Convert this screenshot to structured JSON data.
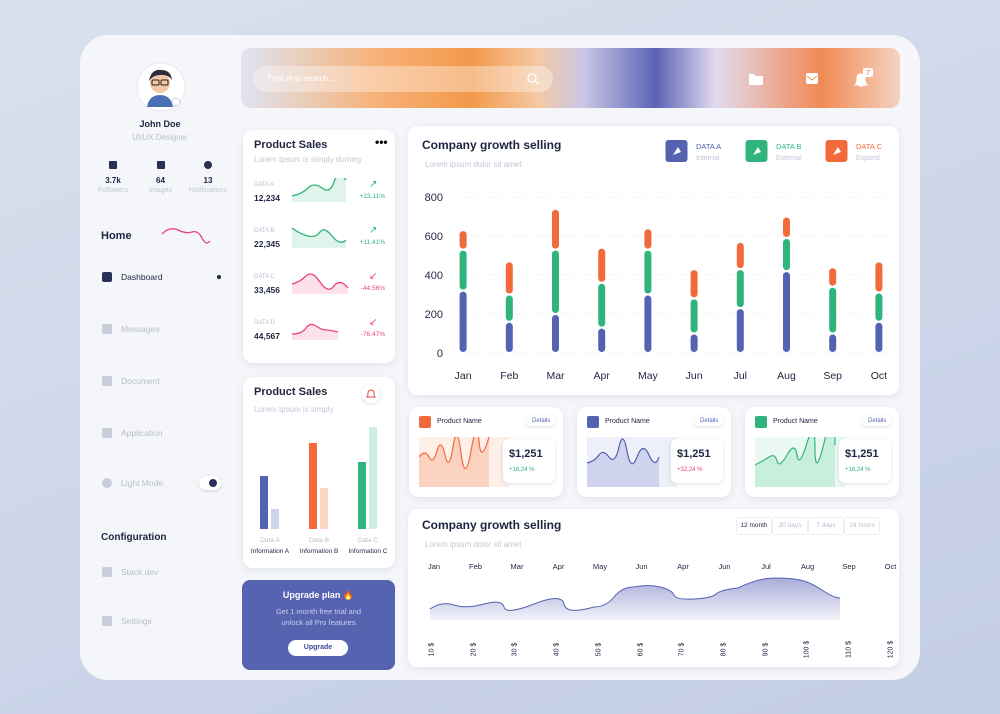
{
  "sidebar": {
    "name": "John Doe",
    "role": "UI/UX Designer",
    "stats": [
      {
        "value": "3.7k",
        "label": "Followers"
      },
      {
        "value": "64",
        "label": "Images"
      },
      {
        "value": "13",
        "label": "Notifications"
      }
    ],
    "home": "Home",
    "menu": [
      "Dashboard",
      "Messages",
      "Document",
      "Application",
      "Light Mode"
    ],
    "config": "Configuration",
    "config_menu": [
      "Stack dev",
      "Settings"
    ]
  },
  "header": {
    "search": "Type in to search...",
    "badge": "7"
  },
  "product_sales": {
    "title": "Product Sales",
    "subtitle": "Lorem Ipsum is simply dummy",
    "items": [
      {
        "label": "DATA A",
        "value": "12,234",
        "change": "+23.11%"
      },
      {
        "label": "DATA B",
        "value": "22,345",
        "change": "+11.41%"
      },
      {
        "label": "DATA C",
        "value": "33,456",
        "change": "-44.56%"
      },
      {
        "label": "DATA D",
        "value": "44,567",
        "change": "-76.47%"
      }
    ]
  },
  "product_sales_2": {
    "title": "Product Sales",
    "subtitle": "Lorem Ipsum is simply",
    "bars": [
      {
        "label": "Data A",
        "name": "Information A"
      },
      {
        "label": "Data B",
        "name": "Information B"
      },
      {
        "label": "Data C",
        "name": "Information C"
      }
    ]
  },
  "upgrade": {
    "title": "Upgrade plan 🔥",
    "lines": [
      "Get 1 month free trial and",
      "unlock all Pro features"
    ],
    "button": "Upgrade"
  },
  "chart_data": {
    "type": "bar",
    "stacked": true,
    "title": "Company growth selling",
    "subtitle": "Lorem ipsum dolor sit amet",
    "categories": [
      "Jan",
      "Feb",
      "Mar",
      "Apr",
      "May",
      "Jun",
      "Jul",
      "Aug",
      "Sep",
      "Oct"
    ],
    "series": [
      {
        "name": "DATA A",
        "note": "Internal",
        "color": "#5462b2",
        "values": [
          320,
          160,
          200,
          130,
          300,
          100,
          230,
          420,
          100,
          160
        ]
      },
      {
        "name": "DATA B",
        "note": "External",
        "color": "#2fb47e",
        "values": [
          210,
          140,
          330,
          230,
          230,
          180,
          200,
          170,
          240,
          150
        ]
      },
      {
        "name": "DATA C",
        "note": "Expand",
        "color": "#f26a3a",
        "values": [
          100,
          170,
          210,
          180,
          110,
          150,
          140,
          110,
          100,
          160
        ]
      }
    ],
    "ylim": [
      0,
      800
    ],
    "yticks": [
      0,
      200,
      400,
      600,
      800
    ],
    "grid": true
  },
  "product_cards": [
    {
      "name": "Product Name",
      "link": "Details",
      "price": "$1,251",
      "change": "+16,24 %"
    },
    {
      "name": "Product Name",
      "link": "Details",
      "price": "$1,251",
      "change": "+32,24 %"
    },
    {
      "name": "Product Name",
      "link": "Details",
      "price": "$1,251",
      "change": "+16,24 %"
    }
  ],
  "growth": {
    "title": "Company growth selling",
    "subtitle": "Lorem ipsum dolor sit amet",
    "tabs": [
      "12 month",
      "30 days",
      "7 days",
      "24 hours"
    ],
    "months": [
      "Jan",
      "Feb",
      "Mar",
      "Apr",
      "May",
      "Jun",
      "Apr",
      "Jun",
      "Jul",
      "Aug",
      "Sep",
      "Oct"
    ],
    "prices": [
      "10 $",
      "20 $",
      "30 $",
      "40 $",
      "50 $",
      "60 $",
      "70 $",
      "80 $",
      "90 $",
      "100 $",
      "110 $",
      "120 $"
    ]
  }
}
